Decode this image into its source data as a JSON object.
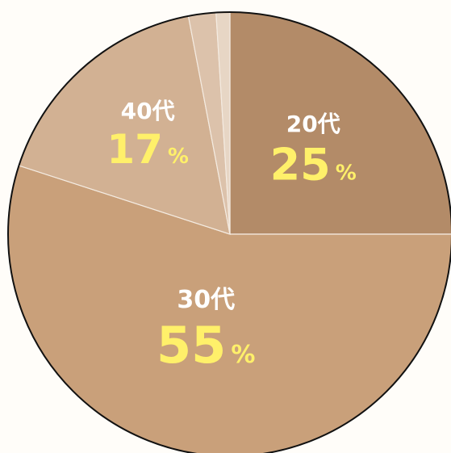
{
  "chart_data": {
    "type": "pie",
    "title": "",
    "start_angle_deg": 0,
    "direction": "clockwise",
    "slices": [
      {
        "category": "20代",
        "value": 25,
        "percent_text": "25",
        "unit": "%",
        "color": "#b38b68",
        "label_visible": true
      },
      {
        "category": "30代",
        "value": 55,
        "percent_text": "55",
        "unit": "%",
        "color": "#c9a07a",
        "label_visible": true
      },
      {
        "category": "40代",
        "value": 17,
        "percent_text": "17",
        "unit": "%",
        "color": "#d2b193",
        "label_visible": true
      },
      {
        "category": "",
        "value": 2,
        "percent_text": "",
        "unit": "",
        "color": "#dcc2ab",
        "label_visible": false
      },
      {
        "category": "",
        "value": 1,
        "percent_text": "",
        "unit": "",
        "color": "#e7d6c5",
        "label_visible": false
      }
    ]
  },
  "colors": {
    "category_label": "#ffffff",
    "percent_label": "#fff06a",
    "outline": "#111111",
    "divider": "#f4ebe1"
  }
}
